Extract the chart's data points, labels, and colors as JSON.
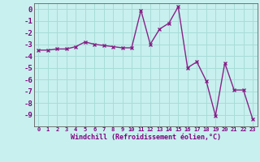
{
  "x": [
    0,
    1,
    2,
    3,
    4,
    5,
    6,
    7,
    8,
    9,
    10,
    11,
    12,
    13,
    14,
    15,
    16,
    17,
    18,
    19,
    20,
    21,
    22,
    23
  ],
  "y": [
    -3.5,
    -3.5,
    -3.4,
    -3.4,
    -3.2,
    -2.8,
    -3.0,
    -3.1,
    -3.2,
    -3.3,
    -3.3,
    -0.1,
    -3.0,
    -1.7,
    -1.2,
    0.2,
    -5.0,
    -4.5,
    -6.1,
    -9.1,
    -4.6,
    -6.9,
    -6.9,
    -9.4
  ],
  "line_color": "#882288",
  "marker": "x",
  "background_color": "#c8f0ee",
  "grid_color": "#a8dcd8",
  "ylim": [
    -10,
    0.5
  ],
  "xlim": [
    -0.5,
    23.5
  ],
  "yticks": [
    0,
    -1,
    -2,
    -3,
    -4,
    -5,
    -6,
    -7,
    -8,
    -9
  ],
  "xticks": [
    0,
    1,
    2,
    3,
    4,
    5,
    6,
    7,
    8,
    9,
    10,
    11,
    12,
    13,
    14,
    15,
    16,
    17,
    18,
    19,
    20,
    21,
    22,
    23
  ],
  "xlabel": "Windchill (Refroidissement éolien,°C)",
  "tick_color": "#800080",
  "spine_color": "#606060",
  "linewidth": 1.0,
  "markersize": 3.5,
  "markeredgewidth": 1.0
}
